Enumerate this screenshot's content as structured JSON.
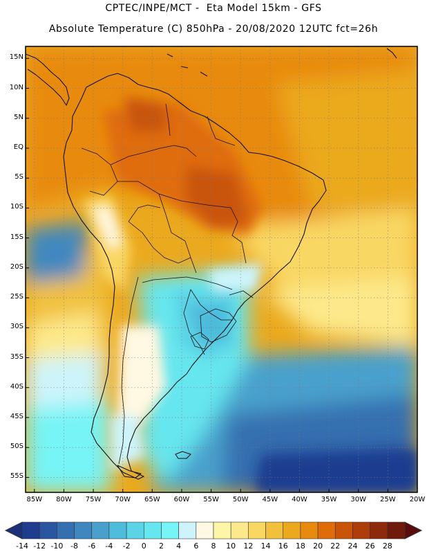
{
  "header": {
    "line1": "CPTEC/INPE/MCT -  Eta Model 15km - GFS",
    "line2": "Absolute Temperature (C) 850hPa - 20/08/2020 12UTC fct=26h"
  },
  "axes": {
    "lat_labels": [
      "15N",
      "10N",
      "5N",
      "EQ",
      "5S",
      "10S",
      "15S",
      "20S",
      "25S",
      "30S",
      "35S",
      "40S",
      "45S",
      "50S",
      "55S"
    ],
    "lat_values": [
      15,
      10,
      5,
      0,
      -5,
      -10,
      -15,
      -20,
      -25,
      -30,
      -35,
      -40,
      -45,
      -50,
      -55
    ],
    "lon_labels": [
      "85W",
      "80W",
      "75W",
      "70W",
      "65W",
      "60W",
      "55W",
      "50W",
      "45W",
      "40W",
      "35W",
      "30W",
      "25W",
      "20W"
    ],
    "lon_values": [
      -85,
      -80,
      -75,
      -70,
      -65,
      -60,
      -55,
      -50,
      -45,
      -40,
      -35,
      -30,
      -25,
      -20
    ],
    "lat_range": [
      -57.5,
      17
    ],
    "lon_range": [
      -86.5,
      -20
    ]
  },
  "colorbar": {
    "labels": [
      "-14",
      "-12",
      "-10",
      "-8",
      "-6",
      "-4",
      "-2",
      "0",
      "2",
      "4",
      "6",
      "8",
      "10",
      "12",
      "14",
      "16",
      "18",
      "20",
      "22",
      "24",
      "26",
      "28"
    ],
    "colors": [
      "#1f3c8f",
      "#2a55a1",
      "#3470b0",
      "#3f88bf",
      "#4aa0cc",
      "#4ebcdb",
      "#5bd4e6",
      "#66e6ee",
      "#77f4f6",
      "#cdf4fb",
      "#fff8e2",
      "#fdf6a6",
      "#fde98b",
      "#f9d763",
      "#f1c13c",
      "#eba91d",
      "#e88a0e",
      "#df6c07",
      "#c95407",
      "#ae3d09",
      "#8e2a0b",
      "#6f1a0a"
    ],
    "low_arrow_color": "#1b2f7a",
    "high_arrow_color": "#5a0c0c"
  },
  "legend_units": "C"
}
